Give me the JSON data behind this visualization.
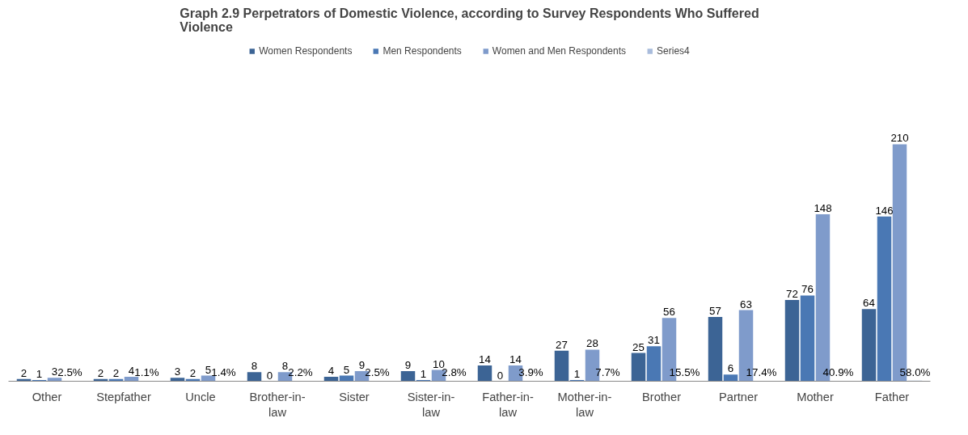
{
  "chart_data": {
    "type": "bar",
    "title": "Graph 2.9 Perpetrators of Domestic Violence, according to Survey Respondents Who Suffered Violence",
    "categories": [
      "Other",
      "Stepfather",
      "Uncle",
      "Brother-in-law",
      "Sister",
      "Sister-in-law",
      "Father-in-law",
      "Mother-in-law",
      "Brother",
      "Partner",
      "Mother",
      "Father"
    ],
    "series": [
      {
        "name": "Women Respondents",
        "color": "#3c6495",
        "values": [
          2,
          2,
          3,
          8,
          4,
          9,
          14,
          27,
          25,
          57,
          72,
          64
        ]
      },
      {
        "name": "Men Respondents",
        "color": "#4a78b4",
        "values": [
          1,
          2,
          2,
          0,
          5,
          1,
          0,
          1,
          31,
          6,
          76,
          146
        ]
      },
      {
        "name": "Women and Men Respondents",
        "color": "#7f9bcb",
        "values": [
          3,
          4,
          5,
          8,
          9,
          10,
          14,
          28,
          56,
          63,
          148,
          210
        ]
      },
      {
        "name": "Series4",
        "color": "#a9bcdc",
        "values": [
          0.025,
          0.011,
          0.014,
          0.022,
          0.025,
          0.028,
          0.039,
          0.077,
          0.155,
          0.174,
          0.409,
          0.58
        ],
        "value_labels": [
          "2.5%",
          "1.1%",
          "1.4%",
          "2.2%",
          "2.5%",
          "2.8%",
          "3.9%",
          "7.7%",
          "15.5%",
          "17.4%",
          "40.9%",
          "58.0%"
        ]
      }
    ],
    "data_labels": true,
    "legend": "top",
    "grid": false
  }
}
